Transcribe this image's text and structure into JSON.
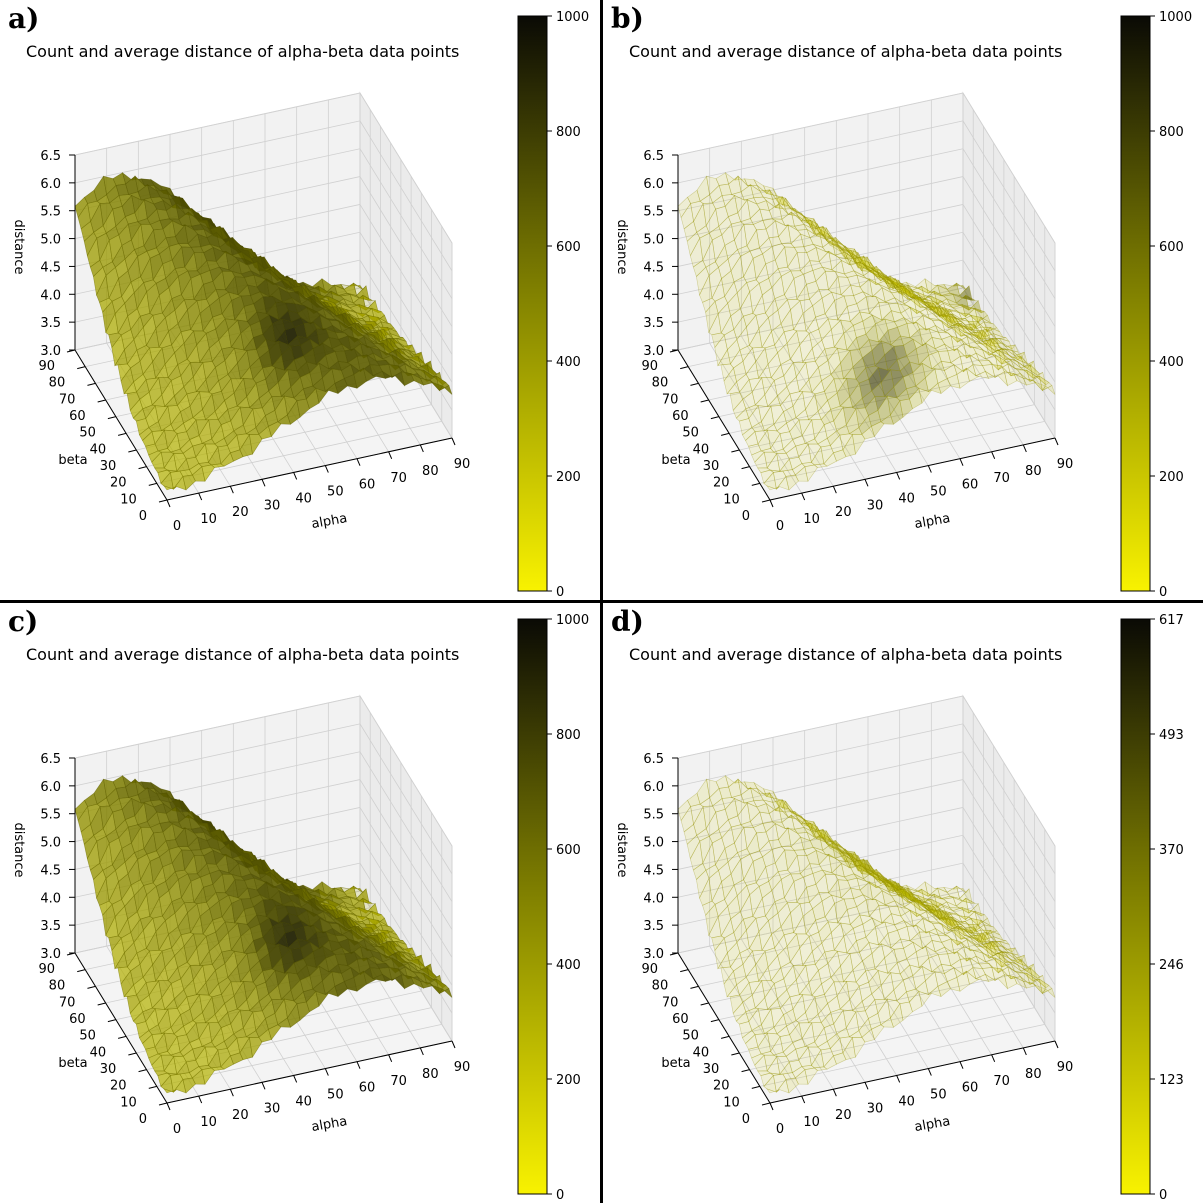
{
  "figure": {
    "colors": {
      "low": "#f8f200",
      "mid": "#7a7a00",
      "high": "#0a0a05",
      "pane": "#f2f2f2",
      "grid": "#d0d0d0"
    }
  },
  "panels": [
    {
      "id": "a",
      "letter": "a)",
      "title": "Count and average distance of alpha-beta data points",
      "colorbar": {
        "ticks": [
          "0",
          "200",
          "400",
          "600",
          "800",
          "1000"
        ]
      },
      "surface": {
        "density": "full",
        "peak": "left-ridge"
      }
    },
    {
      "id": "b",
      "letter": "b)",
      "title": "Count and average distance of alpha-beta data points",
      "colorbar": {
        "ticks": [
          "0",
          "200",
          "400",
          "600",
          "800",
          "1000"
        ]
      },
      "surface": {
        "density": "sparse",
        "peak": "front-valley"
      }
    },
    {
      "id": "c",
      "letter": "c)",
      "title": "Count and average distance of alpha-beta data points",
      "colorbar": {
        "ticks": [
          "0",
          "200",
          "400",
          "600",
          "800",
          "1000"
        ]
      },
      "surface": {
        "density": "full",
        "peak": "left-ridge"
      }
    },
    {
      "id": "d",
      "letter": "d)",
      "title": "Count and average distance of alpha-beta data points",
      "colorbar": {
        "ticks": [
          "0",
          "123",
          "246",
          "370",
          "493",
          "617"
        ]
      },
      "surface": {
        "density": "sparse",
        "peak": "none"
      }
    }
  ],
  "chart_data": [
    {
      "type": "surface",
      "title": "Count and average distance of alpha-beta data points",
      "xlabel": "alpha",
      "ylabel": "beta",
      "zlabel": "distance",
      "xticks": [
        "0",
        "10",
        "20",
        "30",
        "40",
        "50",
        "60",
        "70",
        "80",
        "90"
      ],
      "yticks": [
        "0",
        "10",
        "20",
        "30",
        "40",
        "50",
        "60",
        "70",
        "80",
        "90"
      ],
      "zticks": [
        "3.0",
        "3.5",
        "4.0",
        "4.5",
        "5.0",
        "5.5",
        "6.0",
        "6.5"
      ],
      "xlim": [
        0,
        90
      ],
      "ylim": [
        0,
        90
      ],
      "zlim": [
        3.0,
        6.5
      ],
      "color_range": [
        0,
        1000
      ],
      "colormap": "yellow-to-black"
    },
    {
      "type": "surface",
      "title": "Count and average distance of alpha-beta data points",
      "xlabel": "alpha",
      "ylabel": "beta",
      "zlabel": "distance",
      "xticks": [
        "0",
        "10",
        "20",
        "30",
        "40",
        "50",
        "60",
        "70",
        "80",
        "90"
      ],
      "yticks": [
        "0",
        "10",
        "20",
        "30",
        "40",
        "50",
        "60",
        "70",
        "80",
        "90"
      ],
      "zticks": [
        "3.0",
        "3.5",
        "4.0",
        "4.5",
        "5.0",
        "5.5",
        "6.0",
        "6.5"
      ],
      "xlim": [
        0,
        90
      ],
      "ylim": [
        0,
        90
      ],
      "zlim": [
        3.0,
        6.5
      ],
      "color_range": [
        0,
        1000
      ],
      "colormap": "yellow-to-black"
    },
    {
      "type": "surface",
      "title": "Count and average distance of alpha-beta data points",
      "xlabel": "alpha",
      "ylabel": "beta",
      "zlabel": "distance",
      "xticks": [
        "0",
        "10",
        "20",
        "30",
        "40",
        "50",
        "60",
        "70",
        "80",
        "90"
      ],
      "yticks": [
        "0",
        "10",
        "20",
        "30",
        "40",
        "50",
        "60",
        "70",
        "80",
        "90"
      ],
      "zticks": [
        "3.0",
        "3.5",
        "4.0",
        "4.5",
        "5.0",
        "5.5",
        "6.0",
        "6.5"
      ],
      "xlim": [
        0,
        90
      ],
      "ylim": [
        0,
        90
      ],
      "zlim": [
        3.0,
        6.5
      ],
      "color_range": [
        0,
        1000
      ],
      "colormap": "yellow-to-black"
    },
    {
      "type": "surface",
      "title": "Count and average distance of alpha-beta data points",
      "xlabel": "alpha",
      "ylabel": "beta",
      "zlabel": "distance",
      "xticks": [
        "0",
        "10",
        "20",
        "30",
        "40",
        "50",
        "60",
        "70",
        "80",
        "90"
      ],
      "yticks": [
        "0",
        "10",
        "20",
        "30",
        "40",
        "50",
        "60",
        "70",
        "80",
        "90"
      ],
      "zticks": [
        "3.0",
        "3.5",
        "4.0",
        "4.5",
        "5.0",
        "5.5",
        "6.0",
        "6.5"
      ],
      "xlim": [
        0,
        90
      ],
      "ylim": [
        0,
        90
      ],
      "zlim": [
        3.0,
        6.5
      ],
      "color_range": [
        0,
        617
      ],
      "colormap": "yellow-to-black"
    }
  ]
}
